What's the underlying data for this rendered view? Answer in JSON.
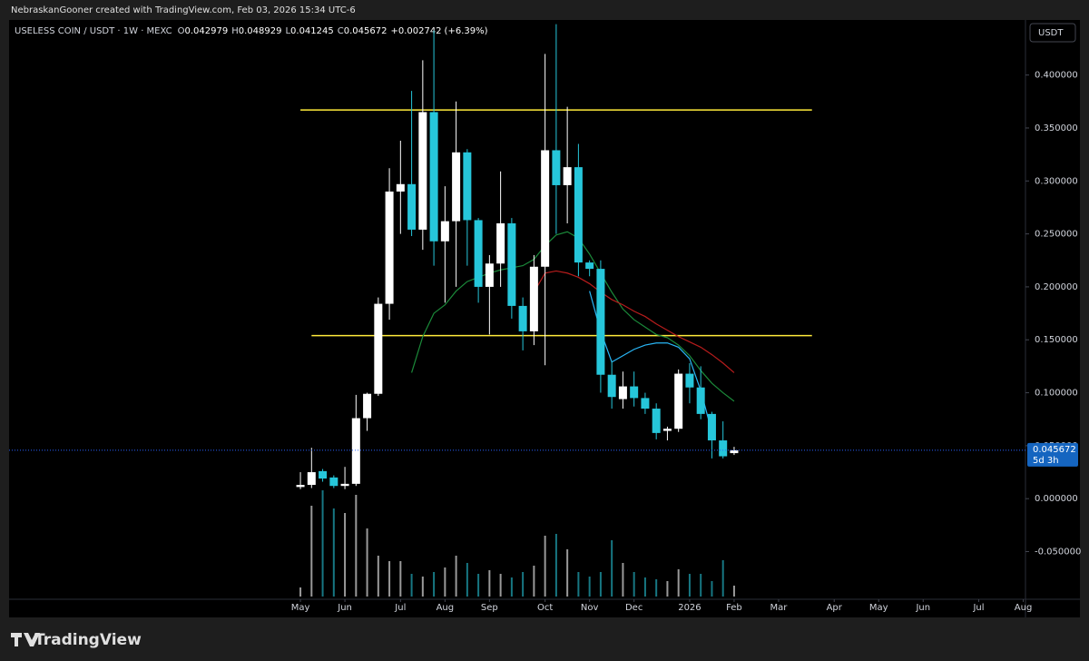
{
  "header": {
    "attribution": "NebraskanGooner created with TradingView.com, Feb 03, 2026 15:34 UTC-6",
    "symbol": "USELESS COIN / USDT · 1W · MEXC",
    "ohlc_letters": [
      "O",
      "H",
      "L",
      "C"
    ],
    "change": {
      "value": 0.002742,
      "label": "+0.002742"
    },
    "change_pct": {
      "value": 6.39,
      "label": "(+6.39%)"
    }
  },
  "chart_data": {
    "type": "candlestick",
    "up_color": "#ffffff",
    "down_color": "#26c6da",
    "currency": "USDT",
    "countdown": "5d 3h",
    "open": [
      0.011,
      0.013,
      0.026,
      0.02,
      0.012,
      0.014,
      0.076,
      0.099,
      0.184,
      0.29,
      0.297,
      0.254,
      0.365,
      0.243,
      0.262,
      0.327,
      0.263,
      0.2,
      0.222,
      0.26,
      0.182,
      0.158,
      0.219,
      0.329,
      0.296,
      0.313,
      0.223,
      0.217,
      0.117,
      0.094,
      0.106,
      0.095,
      0.085,
      0.064,
      0.066,
      0.118,
      0.105,
      0.08,
      0.055,
      0.042979
    ],
    "high": [
      0.025,
      0.048,
      0.028,
      0.022,
      0.03,
      0.098,
      0.1,
      0.19,
      0.312,
      0.338,
      0.385,
      0.414,
      0.442,
      0.295,
      0.375,
      0.33,
      0.265,
      0.23,
      0.309,
      0.265,
      0.19,
      0.23,
      0.42,
      0.448,
      0.37,
      0.335,
      0.225,
      0.225,
      0.13,
      0.12,
      0.12,
      0.1,
      0.09,
      0.068,
      0.122,
      0.128,
      0.125,
      0.082,
      0.073,
      0.048929
    ],
    "low": [
      0.009,
      0.01,
      0.016,
      0.01,
      0.009,
      0.012,
      0.064,
      0.097,
      0.169,
      0.25,
      0.248,
      0.235,
      0.22,
      0.185,
      0.2,
      0.22,
      0.185,
      0.155,
      0.2,
      0.17,
      0.14,
      0.145,
      0.126,
      0.25,
      0.26,
      0.21,
      0.21,
      0.1,
      0.085,
      0.085,
      0.087,
      0.08,
      0.056,
      0.055,
      0.063,
      0.09,
      0.075,
      0.038,
      0.038,
      0.041245
    ],
    "close": [
      0.013,
      0.025,
      0.019,
      0.012,
      0.014,
      0.076,
      0.099,
      0.184,
      0.29,
      0.297,
      0.254,
      0.365,
      0.243,
      0.262,
      0.327,
      0.263,
      0.2,
      0.222,
      0.26,
      0.182,
      0.158,
      0.219,
      0.329,
      0.296,
      0.313,
      0.223,
      0.217,
      0.117,
      0.096,
      0.106,
      0.095,
      0.085,
      0.062,
      0.066,
      0.118,
      0.105,
      0.08,
      0.055,
      0.04,
      0.045672
    ],
    "volume": [
      10,
      100,
      117,
      97,
      92,
      112,
      75,
      45,
      39,
      39,
      25,
      22,
      27,
      32,
      45,
      37,
      25,
      29,
      25,
      21,
      27,
      34,
      67,
      69,
      52,
      27,
      22,
      27,
      62,
      37,
      27,
      21,
      19,
      17,
      30,
      25,
      25,
      17,
      40,
      12
    ],
    "vlim": [
      0,
      130
    ],
    "xlim": [
      -26.2,
      65.2
    ],
    "xticks": [
      {
        "value": 0,
        "label": "May"
      },
      {
        "value": 4,
        "label": "Jun"
      },
      {
        "value": 9,
        "label": "Jul"
      },
      {
        "value": 13,
        "label": "Aug"
      },
      {
        "value": 17,
        "label": "Sep"
      },
      {
        "value": 22,
        "label": "Oct"
      },
      {
        "value": 26,
        "label": "Nov"
      },
      {
        "value": 30,
        "label": "Dec"
      },
      {
        "value": 35,
        "label": "2026"
      },
      {
        "value": 39,
        "label": "Feb"
      },
      {
        "value": 43,
        "label": "Mar"
      },
      {
        "value": 48,
        "label": "Apr"
      },
      {
        "value": 52,
        "label": "May"
      },
      {
        "value": 56,
        "label": "Jun"
      },
      {
        "value": 61,
        "label": "Jul"
      },
      {
        "value": 65,
        "label": "Aug"
      }
    ],
    "ylim": [
      -0.095,
      0.452
    ],
    "yticks": [
      {
        "value": -0.05,
        "label": "-0.050000"
      },
      {
        "value": 0,
        "label": "0.000000"
      },
      {
        "value": 0.05,
        "label": "0.050000"
      },
      {
        "value": 0.1,
        "label": "0.100000"
      },
      {
        "value": 0.15,
        "label": "0.150000"
      },
      {
        "value": 0.2,
        "label": "0.200000"
      },
      {
        "value": 0.25,
        "label": "0.250000"
      },
      {
        "value": 0.3,
        "label": "0.300000"
      },
      {
        "value": 0.35,
        "label": "0.350000"
      },
      {
        "value": 0.4,
        "label": "0.400000"
      }
    ],
    "levels": [
      {
        "value": 0.367,
        "from": 0,
        "to": 46,
        "color": "#ffeb3b"
      },
      {
        "value": 0.154,
        "from": 1,
        "to": 46,
        "color": "#ffeb3b"
      }
    ],
    "overlays": [
      {
        "color": "#1b8a3a",
        "values": [
          null,
          null,
          null,
          null,
          null,
          null,
          null,
          null,
          null,
          null,
          0.119,
          0.153,
          0.175,
          0.183,
          0.196,
          0.205,
          0.209,
          0.213,
          0.216,
          0.218,
          0.22,
          0.226,
          0.239,
          0.249,
          0.252,
          0.246,
          0.231,
          0.213,
          0.195,
          0.179,
          0.169,
          0.162,
          0.155,
          0.152,
          0.145,
          0.135,
          0.121,
          0.109,
          0.1,
          0.092
        ]
      },
      {
        "color": "#b71c1c",
        "values": [
          null,
          null,
          null,
          null,
          null,
          null,
          null,
          null,
          null,
          null,
          null,
          null,
          null,
          null,
          null,
          null,
          null,
          null,
          null,
          null,
          null,
          0.195,
          0.213,
          0.215,
          0.213,
          0.209,
          0.203,
          0.195,
          0.188,
          0.183,
          0.177,
          0.172,
          0.165,
          0.159,
          0.153,
          0.148,
          0.143,
          0.136,
          0.128,
          0.119
        ]
      },
      {
        "color": "#29b6f6",
        "values": [
          null,
          null,
          null,
          null,
          null,
          null,
          null,
          null,
          null,
          null,
          null,
          null,
          null,
          null,
          null,
          null,
          null,
          null,
          null,
          null,
          null,
          null,
          null,
          null,
          null,
          null,
          0.196,
          0.158,
          0.129,
          0.135,
          0.141,
          0.145,
          0.147,
          0.147,
          0.143,
          0.132,
          0.102,
          0.063,
          null,
          null
        ]
      }
    ]
  },
  "footer": {
    "brand": "TradingView"
  }
}
